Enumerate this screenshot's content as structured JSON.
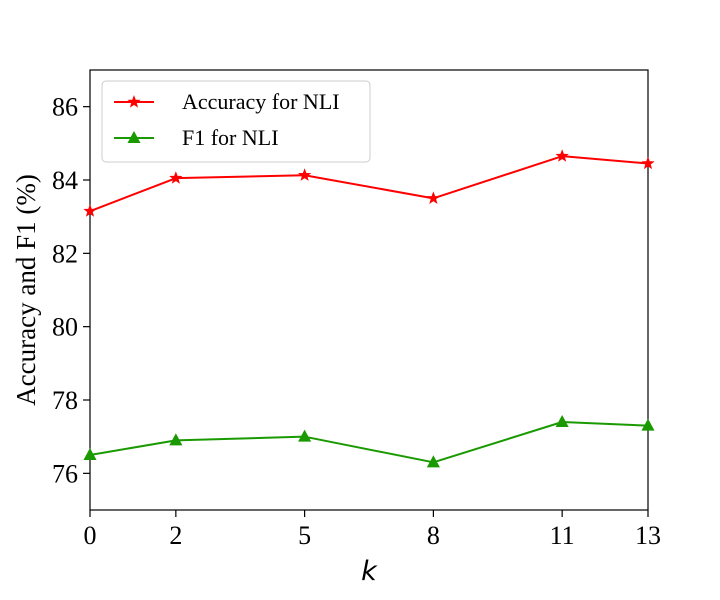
{
  "chart_data": {
    "type": "line",
    "x": [
      0,
      2,
      5,
      8,
      11,
      13
    ],
    "xticks": [
      "0",
      "2",
      "5",
      "8",
      "11",
      "13"
    ],
    "xlabel": "k",
    "ylabel": "Accuracy and F1 (%)",
    "ylim": [
      75,
      87
    ],
    "yticks": [
      "76",
      "78",
      "80",
      "82",
      "84",
      "86"
    ],
    "grid": false,
    "legend_position": "top-left",
    "series": [
      {
        "name": "Accuracy for NLI",
        "color": "#ff0000",
        "marker": "star",
        "values": [
          83.15,
          84.05,
          84.13,
          83.5,
          84.65,
          84.45
        ]
      },
      {
        "name": "F1 for NLI",
        "color": "#1a9a00",
        "marker": "triangle",
        "values": [
          76.5,
          76.9,
          77.0,
          76.3,
          77.4,
          77.3
        ]
      }
    ]
  }
}
